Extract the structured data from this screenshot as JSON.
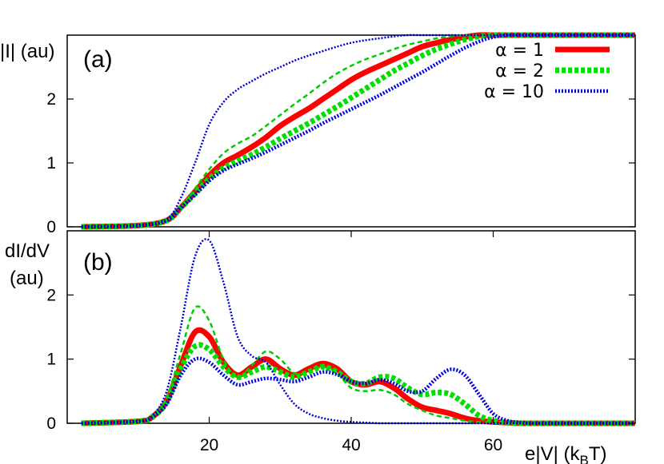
{
  "chart_data": [
    {
      "panel": "a",
      "type": "line",
      "panel_label": "(a)",
      "ylabel": "|I| (au)",
      "xlabel": "",
      "xlim": [
        0,
        80
      ],
      "ylim": [
        0,
        3
      ],
      "yticks": [
        0,
        1,
        2
      ],
      "xticks": [],
      "grid": false,
      "legend_position": "top-right",
      "series": [
        {
          "name": "α = 1",
          "color": "#ff0000",
          "style": "solid-thick",
          "x": [
            2,
            10,
            14,
            16,
            18,
            20,
            22,
            24,
            26,
            28,
            30,
            32,
            34,
            36,
            38,
            40,
            42,
            44,
            46,
            48,
            50,
            52,
            54,
            56,
            58,
            60,
            62,
            64,
            66,
            68,
            70,
            72,
            74,
            76,
            78,
            80
          ],
          "y": [
            0.0,
            0.02,
            0.1,
            0.3,
            0.55,
            0.8,
            1.0,
            1.12,
            1.25,
            1.4,
            1.58,
            1.72,
            1.85,
            2.0,
            2.15,
            2.3,
            2.42,
            2.52,
            2.62,
            2.72,
            2.82,
            2.88,
            2.93,
            2.97,
            3.0,
            3.0,
            3.0,
            3.0,
            3.0,
            3.0,
            3.0,
            3.0,
            3.0,
            3.0,
            3.0,
            3.0
          ]
        },
        {
          "name": "α = 2",
          "color": "#00cc00",
          "style": "dashed",
          "x": [
            2,
            10,
            14,
            16,
            18,
            20,
            22,
            24,
            26,
            28,
            30,
            32,
            34,
            36,
            38,
            40,
            42,
            44,
            46,
            48,
            50,
            52,
            54,
            56,
            58,
            60,
            62,
            64,
            66,
            68,
            70,
            72,
            74,
            76,
            78,
            80
          ],
          "y": [
            0.0,
            0.02,
            0.1,
            0.3,
            0.6,
            0.9,
            1.15,
            1.3,
            1.42,
            1.58,
            1.75,
            1.92,
            2.08,
            2.25,
            2.4,
            2.52,
            2.62,
            2.7,
            2.78,
            2.85,
            2.9,
            2.95,
            2.98,
            3.0,
            3.0,
            3.0,
            3.0,
            3.0,
            3.0,
            3.0,
            3.0,
            3.0,
            3.0,
            3.0,
            3.0,
            3.0
          ]
        },
        {
          "name": "α = 2 (thick)",
          "color": "#00dd00",
          "style": "dashed-thick",
          "x": [
            2,
            10,
            14,
            16,
            18,
            20,
            22,
            24,
            26,
            28,
            30,
            32,
            34,
            36,
            38,
            40,
            42,
            44,
            46,
            48,
            50,
            52,
            54,
            56,
            58,
            60,
            62,
            64,
            66,
            68,
            70,
            72,
            74,
            76,
            78,
            80
          ],
          "y": [
            0.0,
            0.02,
            0.1,
            0.3,
            0.52,
            0.75,
            0.92,
            1.03,
            1.13,
            1.25,
            1.38,
            1.5,
            1.62,
            1.75,
            1.88,
            2.02,
            2.16,
            2.3,
            2.44,
            2.56,
            2.68,
            2.78,
            2.86,
            2.93,
            2.98,
            3.0,
            3.0,
            3.0,
            3.0,
            3.0,
            3.0,
            3.0,
            3.0,
            3.0,
            3.0,
            3.0
          ]
        },
        {
          "name": "α = 10",
          "color": "#0000dd",
          "style": "dotted-thick",
          "x": [
            2,
            10,
            14,
            16,
            18,
            20,
            22,
            24,
            26,
            28,
            30,
            32,
            34,
            36,
            38,
            40,
            42,
            44,
            46,
            48,
            50,
            52,
            54,
            56,
            58,
            60,
            62,
            64,
            66,
            68,
            70,
            72,
            74,
            76,
            78,
            80
          ],
          "y": [
            0.0,
            0.02,
            0.1,
            0.3,
            0.5,
            0.72,
            0.88,
            0.98,
            1.07,
            1.17,
            1.28,
            1.39,
            1.5,
            1.62,
            1.73,
            1.84,
            1.95,
            2.06,
            2.18,
            2.3,
            2.42,
            2.55,
            2.68,
            2.8,
            2.9,
            2.97,
            3.0,
            3.0,
            3.0,
            3.0,
            3.0,
            3.0,
            3.0,
            3.0,
            3.0,
            3.0
          ]
        },
        {
          "name": "α = 10 (thin)",
          "color": "#0000dd",
          "style": "dotted",
          "x": [
            2,
            10,
            14,
            16,
            18,
            20,
            22,
            24,
            26,
            28,
            30,
            32,
            34,
            36,
            38,
            40,
            42,
            44,
            46,
            48,
            50,
            52,
            54,
            56,
            58,
            60,
            62,
            64,
            66,
            68,
            70,
            72,
            74,
            76,
            78,
            80
          ],
          "y": [
            0.0,
            0.02,
            0.12,
            0.45,
            1.0,
            1.6,
            1.95,
            2.15,
            2.28,
            2.4,
            2.5,
            2.6,
            2.68,
            2.75,
            2.82,
            2.88,
            2.92,
            2.95,
            2.98,
            3.0,
            3.0,
            3.0,
            3.0,
            3.0,
            3.0,
            3.0,
            3.0,
            3.0,
            3.0,
            3.0,
            3.0,
            3.0,
            3.0,
            3.0,
            3.0,
            3.0
          ]
        }
      ]
    },
    {
      "panel": "b",
      "type": "line",
      "panel_label": "(b)",
      "ylabel_line1": "dI/dV",
      "ylabel_line2": "(au)",
      "xlabel": "e|V| (k",
      "xlabel_sub": "B",
      "xlabel_end": "T)",
      "xlim": [
        0,
        80
      ],
      "ylim": [
        0,
        3
      ],
      "yticks": [
        0,
        1,
        2
      ],
      "xticks": [
        20,
        40,
        60
      ],
      "grid": false,
      "series": [
        {
          "name": "α = 1",
          "color": "#ff0000",
          "style": "solid-thick",
          "x": [
            2,
            10,
            12,
            14,
            16,
            18,
            20,
            22,
            24,
            26,
            28,
            30,
            32,
            34,
            36,
            38,
            40,
            42,
            44,
            46,
            48,
            50,
            52,
            54,
            56,
            58,
            60,
            62,
            64,
            66,
            70,
            75,
            80
          ],
          "y": [
            0.0,
            0.03,
            0.1,
            0.35,
            0.9,
            1.42,
            1.35,
            0.95,
            0.75,
            0.88,
            1.0,
            0.85,
            0.75,
            0.85,
            0.93,
            0.85,
            0.65,
            0.6,
            0.65,
            0.55,
            0.38,
            0.25,
            0.2,
            0.15,
            0.08,
            0.04,
            0.02,
            0.01,
            0.0,
            0.0,
            0.0,
            0.0,
            0.0
          ]
        },
        {
          "name": "α = 2",
          "color": "#00cc00",
          "style": "dashed",
          "x": [
            2,
            10,
            12,
            14,
            16,
            18,
            20,
            22,
            24,
            26,
            28,
            30,
            32,
            34,
            36,
            38,
            40,
            42,
            44,
            46,
            48,
            50,
            52,
            54,
            56,
            58,
            60,
            62,
            64,
            66,
            70,
            75,
            80
          ],
          "y": [
            0.0,
            0.03,
            0.1,
            0.4,
            1.1,
            1.8,
            1.6,
            1.0,
            0.72,
            0.9,
            1.12,
            1.0,
            0.78,
            0.8,
            0.88,
            0.78,
            0.55,
            0.5,
            0.52,
            0.45,
            0.3,
            0.2,
            0.12,
            0.08,
            0.04,
            0.02,
            0.01,
            0.0,
            0.0,
            0.0,
            0.0,
            0.0,
            0.0
          ]
        },
        {
          "name": "α = 2 (thick)",
          "color": "#00dd00",
          "style": "dashed-thick",
          "x": [
            2,
            10,
            12,
            14,
            16,
            18,
            20,
            22,
            24,
            26,
            28,
            30,
            32,
            34,
            36,
            38,
            40,
            42,
            44,
            46,
            48,
            50,
            52,
            54,
            56,
            58,
            60,
            62,
            64,
            66,
            70,
            75,
            80
          ],
          "y": [
            0.0,
            0.03,
            0.1,
            0.33,
            0.85,
            1.2,
            1.15,
            0.88,
            0.72,
            0.8,
            0.88,
            0.8,
            0.72,
            0.8,
            0.88,
            0.8,
            0.65,
            0.62,
            0.72,
            0.7,
            0.55,
            0.45,
            0.48,
            0.45,
            0.3,
            0.12,
            0.04,
            0.01,
            0.0,
            0.0,
            0.0,
            0.0,
            0.0
          ]
        },
        {
          "name": "α = 10",
          "color": "#0000dd",
          "style": "dotted-thick",
          "x": [
            2,
            10,
            12,
            14,
            16,
            18,
            20,
            22,
            24,
            26,
            28,
            30,
            32,
            34,
            36,
            38,
            40,
            42,
            44,
            46,
            48,
            50,
            52,
            54,
            56,
            58,
            60,
            62,
            64,
            66,
            70,
            75,
            80
          ],
          "y": [
            0.0,
            0.03,
            0.1,
            0.3,
            0.75,
            1.0,
            0.95,
            0.75,
            0.6,
            0.65,
            0.7,
            0.68,
            0.65,
            0.72,
            0.8,
            0.76,
            0.65,
            0.62,
            0.68,
            0.62,
            0.5,
            0.5,
            0.7,
            0.84,
            0.75,
            0.45,
            0.15,
            0.04,
            0.01,
            0.0,
            0.0,
            0.0,
            0.0
          ]
        },
        {
          "name": "α = 10 (thin)",
          "color": "#0000dd",
          "style": "dotted",
          "x": [
            2,
            10,
            12,
            14,
            16,
            18,
            20,
            22,
            24,
            26,
            28,
            30,
            32,
            34,
            36,
            38,
            40,
            42,
            44,
            46,
            48,
            50,
            52,
            54,
            56,
            58,
            60,
            62,
            64,
            66,
            70,
            75,
            80
          ],
          "y": [
            0.0,
            0.03,
            0.12,
            0.5,
            1.5,
            2.6,
            2.85,
            2.2,
            1.35,
            1.05,
            0.95,
            0.6,
            0.3,
            0.15,
            0.08,
            0.04,
            0.02,
            0.01,
            0.0,
            0.0,
            0.0,
            0.0,
            0.0,
            0.0,
            0.0,
            0.0,
            0.0,
            0.0,
            0.0,
            0.0,
            0.0,
            0.0,
            0.0
          ]
        }
      ]
    }
  ],
  "legend": {
    "entries": [
      {
        "label": "α = 1",
        "color": "#ff0000",
        "style": "solid-thick"
      },
      {
        "label": "α = 2",
        "color": "#00dd00",
        "style": "dashed-thick"
      },
      {
        "label": "α = 10",
        "color": "#0000dd",
        "style": "dotted-thick"
      }
    ]
  }
}
